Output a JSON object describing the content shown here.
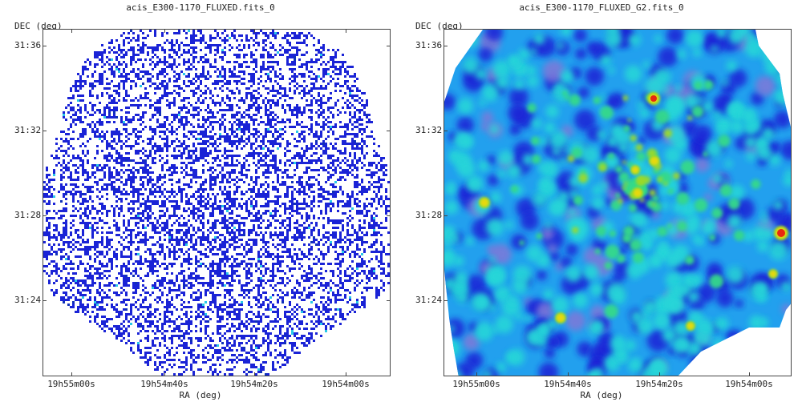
{
  "left": {
    "title": "acis_E300-1170_FLUXED.fits_0",
    "ylabel": "DEC (deg)",
    "xlabel": "RA (deg)",
    "yticks": [
      "31:36",
      "31:32",
      "31:28",
      "31:24"
    ],
    "xticks": [
      "19h55m00s",
      "19h54m40s",
      "19h54m20s",
      "19h54m00s"
    ],
    "color_primary": "#1a23d6"
  },
  "right": {
    "title": "acis_E300-1170_FLUXED_G2.fits_0",
    "ylabel": "DEC (deg)",
    "xlabel": "RA (deg)",
    "yticks": [
      "31:36",
      "31:32",
      "31:28",
      "31:24"
    ],
    "xticks": [
      "19h55m00s",
      "19h54m40s",
      "19h54m20s",
      "19h54m00s"
    ],
    "colors": [
      "#1a23d6",
      "#22a0ee",
      "#28d6d8",
      "#36d98a",
      "#9bd92a",
      "#e7d90c",
      "#e82810"
    ]
  }
}
